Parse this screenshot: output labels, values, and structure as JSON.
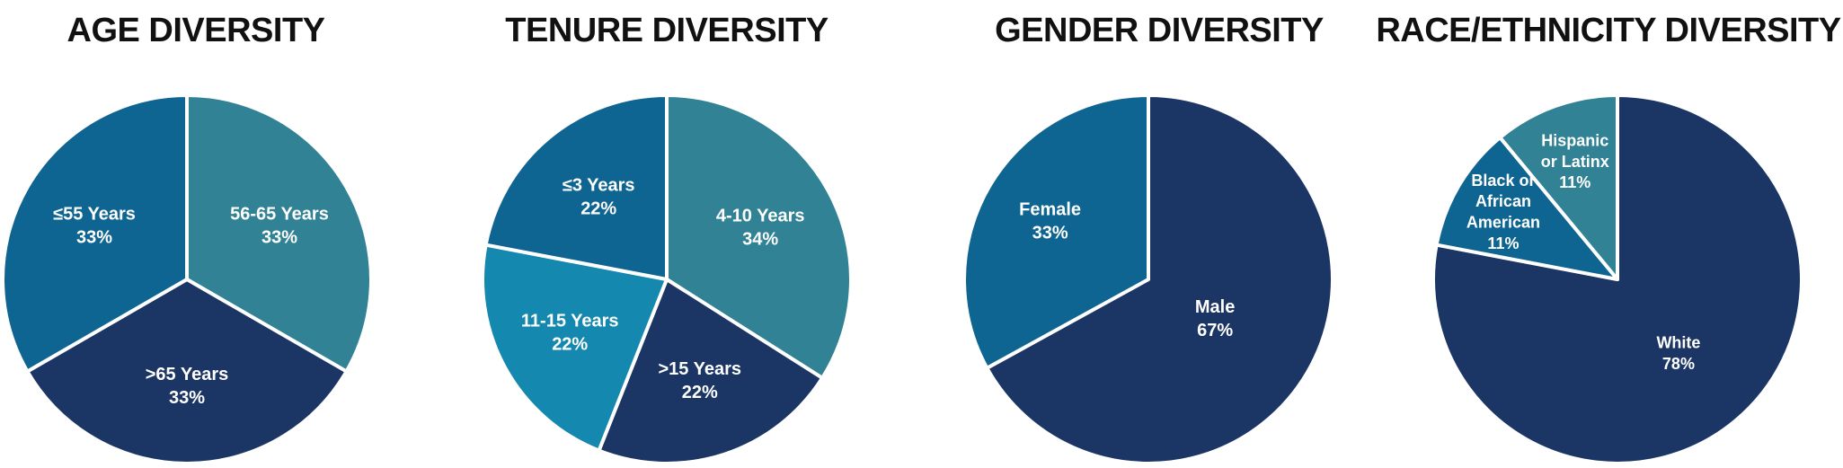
{
  "colors": {
    "dark_navy": "#1b3564",
    "mid_blue": "#0f6591",
    "teal": "#318295",
    "bright_blue": "#1488af",
    "separator": "#ffffff",
    "title": "#111111"
  },
  "chart_data": [
    {
      "type": "pie",
      "title": "AGE DIVERSITY",
      "slices": [
        {
          "lines": [
            "56-65 Years",
            "33%"
          ],
          "label": "56-65 Years",
          "value": 33,
          "color": "#318295"
        },
        {
          "lines": [
            ">65 Years",
            "33%"
          ],
          "label": ">65 Years",
          "value": 33,
          "color": "#1b3564"
        },
        {
          "lines": [
            "≤55 Years",
            "33%"
          ],
          "label": "≤55 Years",
          "value": 33,
          "color": "#0f6591"
        }
      ]
    },
    {
      "type": "pie",
      "title": "TENURE DIVERSITY",
      "slices": [
        {
          "lines": [
            "4-10 Years",
            "34%"
          ],
          "label": "4-10 Years",
          "value": 34,
          "color": "#318295"
        },
        {
          "lines": [
            ">15 Years",
            "22%"
          ],
          "label": ">15 Years",
          "value": 22,
          "color": "#1b3564"
        },
        {
          "lines": [
            "11-15 Years",
            "22%"
          ],
          "label": "11-15 Years",
          "value": 22,
          "color": "#1488af"
        },
        {
          "lines": [
            "≤3 Years",
            "22%"
          ],
          "label": "≤3 Years",
          "value": 22,
          "color": "#0f6591"
        }
      ]
    },
    {
      "type": "pie",
      "title": "GENDER DIVERSITY",
      "slices": [
        {
          "lines": [
            "Male",
            "67%"
          ],
          "label": "Male",
          "value": 67,
          "color": "#1b3564"
        },
        {
          "lines": [
            "Female",
            "33%"
          ],
          "label": "Female",
          "value": 33,
          "color": "#0f6591"
        }
      ]
    },
    {
      "type": "pie",
      "title": "RACE/ETHNICITY DIVERSITY",
      "slices": [
        {
          "lines": [
            "White",
            "78%"
          ],
          "label": "White",
          "value": 78,
          "color": "#1b3564"
        },
        {
          "lines": [
            "Black or",
            "African",
            "American",
            "11%"
          ],
          "label": "Black or African American",
          "value": 11,
          "color": "#0f6591"
        },
        {
          "lines": [
            "Hispanic",
            "or Latinx",
            "11%"
          ],
          "label": "Hispanic or Latinx",
          "value": 11,
          "color": "#318295"
        }
      ]
    }
  ]
}
